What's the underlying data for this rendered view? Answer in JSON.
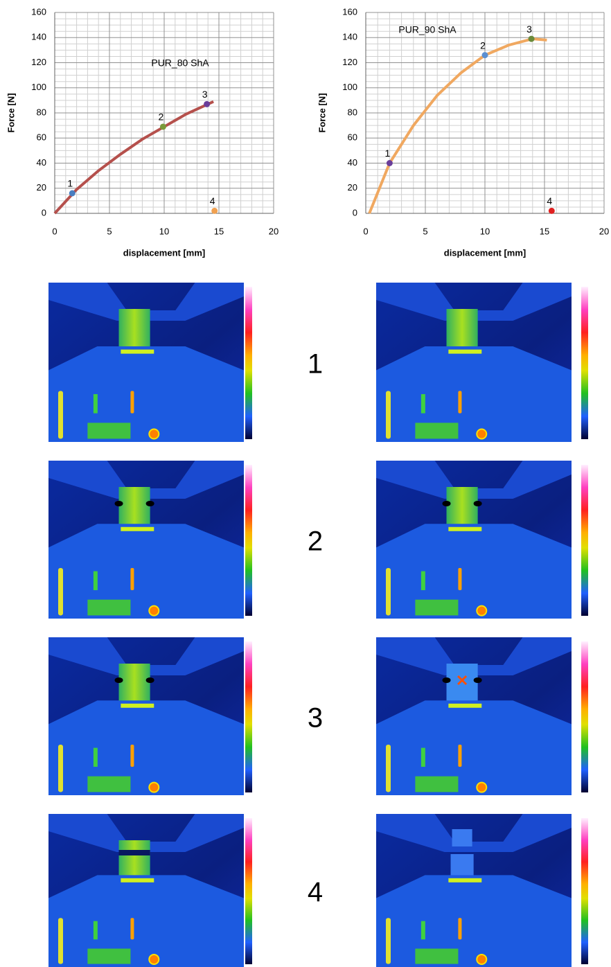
{
  "chart_data": [
    {
      "type": "line",
      "annotation": "PUR_80 ShA",
      "xlabel": "displacement [mm]",
      "ylabel": "Force [N]",
      "x": [
        0,
        2,
        4,
        6,
        8,
        10,
        12,
        14,
        14.5
      ],
      "values": [
        0,
        19,
        34,
        47,
        59,
        69,
        79,
        87,
        89
      ],
      "color": "#b5504c",
      "points": {
        "x": [
          1.6,
          9.9,
          13.9,
          14.6
        ],
        "values": [
          16,
          69,
          87,
          2
        ],
        "labels": [
          "1",
          "2",
          "3",
          "4"
        ],
        "colors": [
          "#4a7fc1",
          "#7a9a3a",
          "#6a3d9a",
          "#f0a050"
        ]
      },
      "xlim": [
        0,
        20
      ],
      "xticks": [
        0,
        5,
        10,
        15,
        20
      ],
      "ylim": [
        0,
        160
      ],
      "yticks": [
        0,
        20,
        40,
        60,
        80,
        100,
        120,
        140,
        160
      ],
      "grid": true
    },
    {
      "type": "line",
      "annotation": "PUR_90 ShA",
      "xlabel": "displacement [mm]",
      "ylabel": "Force [N]",
      "x": [
        0.3,
        2,
        4,
        6,
        8,
        10,
        12,
        14,
        15.2
      ],
      "values": [
        0,
        40,
        70,
        94,
        112,
        126,
        134,
        139,
        138
      ],
      "color": "#f0a860",
      "points": {
        "x": [
          2,
          10,
          13.9,
          15.6
        ],
        "values": [
          40,
          126,
          139,
          2
        ],
        "labels": [
          "1",
          "2",
          "3",
          "4"
        ],
        "colors": [
          "#6a3d9a",
          "#5a8fd1",
          "#6a8a3a",
          "#e02020"
        ]
      },
      "xlim": [
        0,
        20
      ],
      "xticks": [
        0,
        5,
        10,
        15,
        20
      ],
      "ylim": [
        0,
        160
      ],
      "yticks": [
        0,
        20,
        40,
        60,
        80,
        100,
        120,
        140,
        160
      ],
      "grid": true
    }
  ],
  "figure": {
    "row_labels": [
      "1",
      "2",
      "3",
      "4"
    ]
  }
}
